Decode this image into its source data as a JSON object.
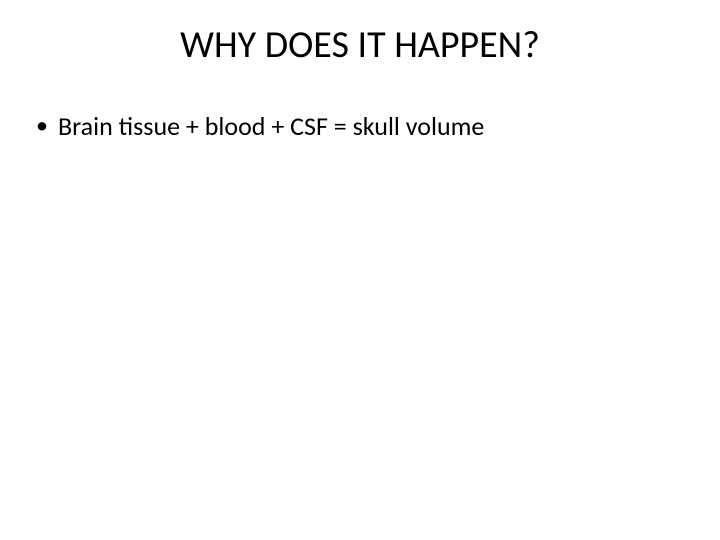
{
  "slide": {
    "title": "WHY DOES IT HAPPEN?",
    "title_fontsize": 38,
    "title_color": "#000000",
    "background_color": "#ffffff",
    "bullets": [
      {
        "text": "Brain tissue + blood + CSF = skull volume"
      }
    ],
    "bullet_fontsize": 26,
    "bullet_color": "#000000",
    "font_family": "Calibri"
  }
}
